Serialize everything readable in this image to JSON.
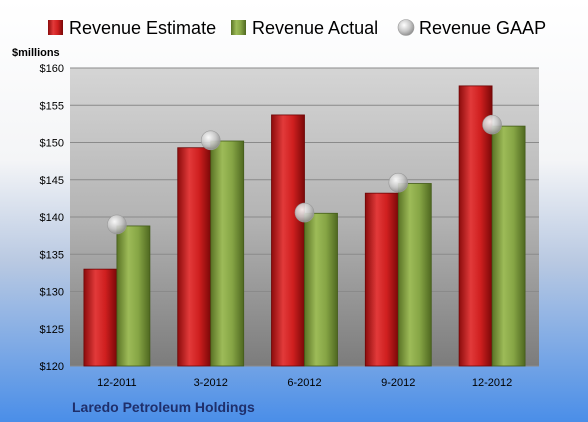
{
  "chart_data": {
    "type": "bar",
    "unit_label": "$millions",
    "company": "Laredo Petroleum Holdings",
    "categories": [
      "12-2011",
      "3-2012",
      "6-2012",
      "9-2012",
      "12-2012"
    ],
    "series": [
      {
        "name": "Revenue Estimate",
        "kind": "bar",
        "color": "#cc1f1f",
        "values": [
          133.0,
          149.3,
          153.7,
          143.2,
          157.6
        ]
      },
      {
        "name": "Revenue Actual",
        "kind": "bar",
        "color": "#7f9e3c",
        "values": [
          138.8,
          150.2,
          140.5,
          144.5,
          152.2
        ]
      },
      {
        "name": "Revenue GAAP",
        "kind": "marker",
        "color": "#c8c8c8",
        "values": [
          139.0,
          150.3,
          140.6,
          144.6,
          152.4
        ]
      }
    ],
    "ylim": [
      120,
      160
    ],
    "yticks": [
      120,
      125,
      130,
      135,
      140,
      145,
      150,
      155,
      160
    ],
    "ytick_labels": [
      "$120",
      "$125",
      "$130",
      "$135",
      "$140",
      "$145",
      "$150",
      "$155",
      "$160"
    ],
    "grid": true,
    "legend": "top"
  }
}
